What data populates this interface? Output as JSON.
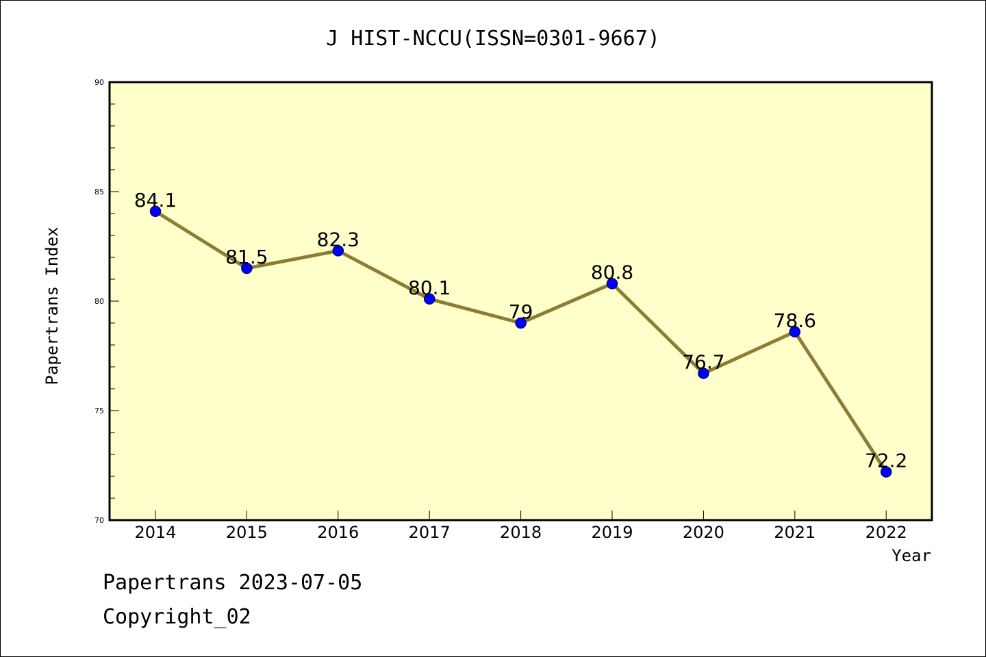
{
  "chart_data": {
    "type": "line",
    "title": "J HIST-NCCU(ISSN=0301-9667)",
    "xlabel": "Year",
    "ylabel": "Papertrans Index",
    "categories": [
      "2014",
      "2015",
      "2016",
      "2017",
      "2018",
      "2019",
      "2020",
      "2021",
      "2022"
    ],
    "values": [
      84.1,
      81.5,
      82.3,
      80.1,
      79,
      80.8,
      76.7,
      78.6,
      72.2
    ],
    "data_labels": [
      "84.1",
      "81.5",
      "82.3",
      "80.1",
      "79",
      "80.8",
      "76.7",
      "78.6",
      "72.2"
    ],
    "ylim": [
      70,
      90
    ],
    "yticks": [
      70,
      75,
      80,
      85,
      90
    ],
    "ytick_labels": [
      "70",
      "75",
      "80",
      "85",
      "90"
    ],
    "grid": false,
    "legend": "none",
    "colors": {
      "plot_background": "#ffffcc",
      "line": "#8b7d34",
      "marker_fill": "#0000ff",
      "marker_edge": "#000080",
      "axis": "#000000"
    }
  },
  "footer": {
    "date_line": "Papertrans 2023-07-05",
    "copyright": "Copyright_02"
  }
}
